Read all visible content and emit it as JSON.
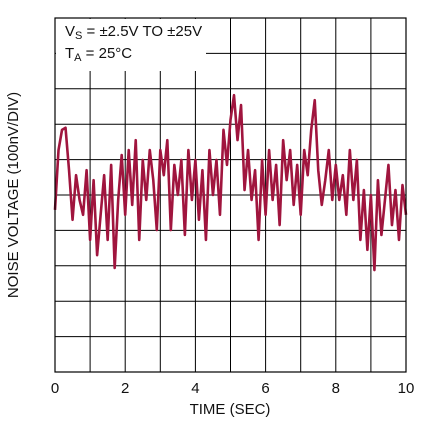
{
  "chart_data": {
    "type": "line",
    "y_label": "NOISE VOLTAGE (100nV/DIV)",
    "x_label": "TIME (SEC)",
    "annotations": [
      [
        "V",
        "S",
        " = ±2.5V TO ±25V"
      ],
      [
        "T",
        "A",
        " = 25°C"
      ]
    ],
    "xlim": [
      0,
      10
    ],
    "xticks": [
      0,
      2,
      4,
      6,
      8,
      10
    ],
    "xgrid": [
      1,
      2,
      3,
      4,
      5,
      6,
      7,
      8,
      9
    ],
    "ylim": [
      -500,
      500
    ],
    "ygrid": [
      -400,
      -300,
      -200,
      -100,
      0,
      100,
      200,
      300,
      400
    ],
    "x": [
      0,
      0.1,
      0.2,
      0.3,
      0.4,
      0.5,
      0.6,
      0.7,
      0.8,
      0.9,
      1,
      1.1,
      1.2,
      1.3,
      1.4,
      1.5,
      1.6,
      1.7,
      1.8,
      1.9,
      2,
      2.1,
      2.2,
      2.3,
      2.4,
      2.5,
      2.6,
      2.7,
      2.8,
      2.9,
      3,
      3.1,
      3.2,
      3.3,
      3.4,
      3.5,
      3.6,
      3.7,
      3.8,
      3.9,
      4,
      4.1,
      4.2,
      4.3,
      4.4,
      4.5,
      4.6,
      4.7,
      4.8,
      4.9,
      5,
      5.1,
      5.2,
      5.3,
      5.4,
      5.5,
      5.6,
      5.7,
      5.8,
      5.9,
      6,
      6.1,
      6.2,
      6.3,
      6.4,
      6.5,
      6.6,
      6.7,
      6.8,
      6.9,
      7,
      7.1,
      7.2,
      7.3,
      7.4,
      7.5,
      7.6,
      7.7,
      7.8,
      7.9,
      8,
      8.1,
      8.2,
      8.3,
      8.4,
      8.5,
      8.6,
      8.7,
      8.8,
      8.9,
      9,
      9.1,
      9.2,
      9.3,
      9.4,
      9.5,
      9.6,
      9.7,
      9.8,
      9.9,
      10
    ],
    "series": [
      {
        "color": "#a0153e",
        "values": [
          -42,
          127,
          184,
          190,
          70,
          -70,
          56,
          -14,
          -56,
          70,
          -127,
          42,
          -170,
          -56,
          56,
          -127,
          85,
          -206,
          -14,
          113,
          -56,
          127,
          -28,
          155,
          -127,
          99,
          -14,
          127,
          42,
          -99,
          127,
          56,
          155,
          -99,
          85,
          0,
          99,
          -113,
          127,
          -14,
          99,
          -70,
          70,
          -127,
          127,
          0,
          99,
          -56,
          184,
          85,
          212,
          282,
          155,
          254,
          14,
          127,
          -14,
          70,
          -127,
          99,
          -56,
          127,
          -14,
          85,
          -85,
          155,
          42,
          127,
          -28,
          85,
          -56,
          127,
          56,
          184,
          268,
          70,
          -28,
          42,
          127,
          -14,
          85,
          -14,
          56,
          -56,
          127,
          -14,
          99,
          -127,
          14,
          -155,
          0,
          -212,
          42,
          -113,
          -14,
          85,
          -85,
          14,
          -127,
          28,
          -56
        ]
      }
    ]
  }
}
